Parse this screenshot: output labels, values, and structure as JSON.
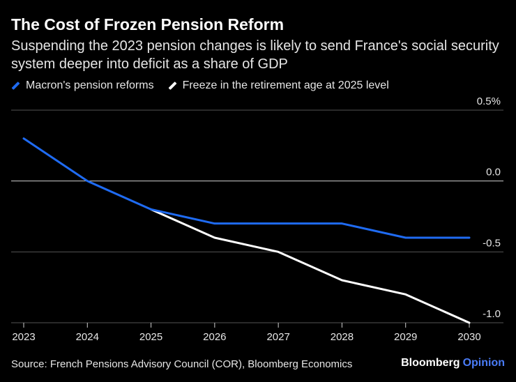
{
  "chart_data": {
    "type": "line",
    "title": "The Cost of Frozen Pension Reform",
    "subtitle": "Suspending the 2023 pension changes is likely to send France's social security system deeper into deficit as a share of GDP",
    "x": [
      2023,
      2024,
      2025,
      2026,
      2027,
      2028,
      2029,
      2030
    ],
    "x_tick_labels": [
      "2023",
      "2024",
      "2025",
      "2026",
      "2027",
      "2028",
      "2029",
      "2030"
    ],
    "y_tick_values": [
      0.5,
      0.0,
      -0.5,
      -1.0
    ],
    "y_tick_labels": [
      "0.5%",
      "0.0",
      "-0.5",
      "-1.0"
    ],
    "ylim": [
      -1.0,
      0.5
    ],
    "series": [
      {
        "name": "Macron's pension reforms",
        "color": "#1f6bf2",
        "values": [
          0.3,
          0.0,
          -0.2,
          -0.3,
          -0.3,
          -0.3,
          -0.4,
          -0.4
        ]
      },
      {
        "name": "Freeze in the retirement age at 2025 level",
        "color": "#ffffff",
        "values": [
          null,
          null,
          -0.2,
          -0.4,
          -0.5,
          -0.7,
          -0.8,
          -1.0
        ]
      }
    ],
    "legend": "top-left",
    "grid": true,
    "xlabel": "",
    "ylabel": ""
  },
  "source": "Source: French Pensions Advisory Council (COR), Bloomberg Economics",
  "brand": {
    "name": "Bloomberg",
    "opinion": "Opinion"
  }
}
